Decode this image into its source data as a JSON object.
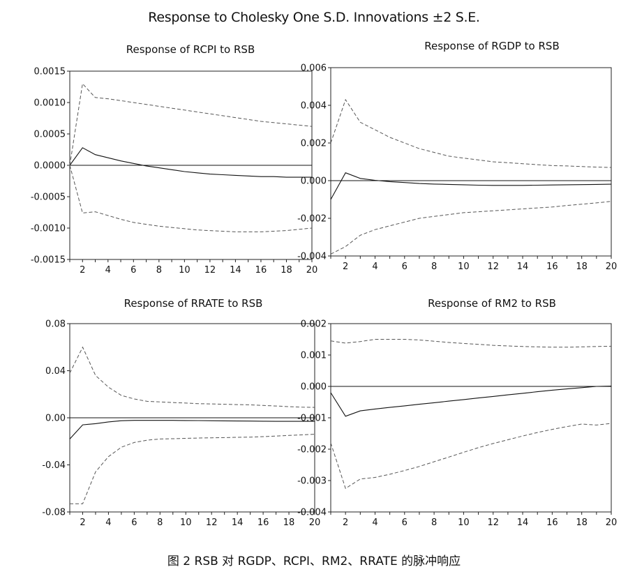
{
  "title": "Response to Cholesky One S.D. Innovations ±2 S.E.",
  "caption": "图 2   RSB 对 RGDP、RCPI、RM2、RRATE 的脉冲响应",
  "chart_data": [
    {
      "type": "line",
      "title": "Response of RCPI to RSB",
      "x": [
        1,
        2,
        3,
        4,
        5,
        6,
        7,
        8,
        9,
        10,
        11,
        12,
        13,
        14,
        15,
        16,
        17,
        18,
        19,
        20
      ],
      "xticks": [
        2,
        4,
        6,
        8,
        10,
        12,
        14,
        16,
        18,
        20
      ],
      "xlim": [
        1,
        20
      ],
      "ylim": [
        -0.0015,
        0.0015
      ],
      "yticks": [
        -0.0015,
        -0.001,
        -0.0005,
        0,
        0.0005,
        0.001,
        0.0015
      ],
      "ytick_labels": [
        "-0.0015",
        "-0.0010",
        "-0.0005",
        "0.0000",
        "0.0005",
        "0.0010",
        "0.0015"
      ],
      "series": [
        {
          "style": "solid",
          "values": [
            0,
            0.00028,
            0.00017,
            0.00012,
            7e-05,
            3e-05,
            -1e-05,
            -4e-05,
            -7e-05,
            -0.0001,
            -0.00012,
            -0.00014,
            -0.00015,
            -0.00016,
            -0.00017,
            -0.00018,
            -0.00018,
            -0.00019,
            -0.00019,
            -0.00019
          ]
        },
        {
          "style": "dashed",
          "values": [
            0,
            0.0013,
            0.00108,
            0.00106,
            0.00103,
            0.001,
            0.00097,
            0.00094,
            0.00091,
            0.00088,
            0.00085,
            0.00082,
            0.00079,
            0.00076,
            0.00073,
            0.0007,
            0.00068,
            0.00066,
            0.00064,
            0.00062
          ]
        },
        {
          "style": "dashed",
          "values": [
            0,
            -0.00076,
            -0.00074,
            -0.0008,
            -0.00086,
            -0.00091,
            -0.00094,
            -0.00097,
            -0.00099,
            -0.00101,
            -0.00103,
            -0.00104,
            -0.00105,
            -0.00106,
            -0.00106,
            -0.00106,
            -0.00105,
            -0.00104,
            -0.00102,
            -0.001
          ]
        }
      ]
    },
    {
      "type": "line",
      "title": "Response of RGDP to RSB",
      "x": [
        1,
        2,
        3,
        4,
        5,
        6,
        7,
        8,
        9,
        10,
        11,
        12,
        13,
        14,
        15,
        16,
        17,
        18,
        19,
        20
      ],
      "xticks": [
        2,
        4,
        6,
        8,
        10,
        12,
        14,
        16,
        18,
        20
      ],
      "xlim": [
        1,
        20
      ],
      "ylim": [
        -0.004,
        0.006
      ],
      "yticks": [
        -0.004,
        -0.002,
        0,
        0.002,
        0.004,
        0.006
      ],
      "ytick_labels": [
        "-0.004",
        "-0.002",
        "0.000",
        "0.002",
        "0.004",
        "0.006"
      ],
      "series": [
        {
          "style": "solid",
          "values": [
            -0.001,
            0.00042,
            0.00012,
            2e-05,
            -5e-05,
            -0.0001,
            -0.00015,
            -0.00018,
            -0.0002,
            -0.00022,
            -0.00024,
            -0.00025,
            -0.00025,
            -0.00025,
            -0.00024,
            -0.00023,
            -0.00022,
            -0.00021,
            -0.0002,
            -0.00019
          ]
        },
        {
          "style": "dashed",
          "values": [
            0.002,
            0.0043,
            0.0031,
            0.0027,
            0.0023,
            0.002,
            0.0017,
            0.0015,
            0.0013,
            0.0012,
            0.0011,
            0.001,
            0.00095,
            0.0009,
            0.00085,
            0.0008,
            0.00078,
            0.00075,
            0.00072,
            0.0007
          ]
        },
        {
          "style": "dashed",
          "values": [
            -0.0039,
            -0.0035,
            -0.0029,
            -0.0026,
            -0.0024,
            -0.0022,
            -0.002,
            -0.0019,
            -0.0018,
            -0.0017,
            -0.00165,
            -0.0016,
            -0.00155,
            -0.0015,
            -0.00145,
            -0.0014,
            -0.00132,
            -0.00125,
            -0.00118,
            -0.0011
          ]
        }
      ]
    },
    {
      "type": "line",
      "title": "Response of RRATE to RSB",
      "x": [
        1,
        2,
        3,
        4,
        5,
        6,
        7,
        8,
        9,
        10,
        11,
        12,
        13,
        14,
        15,
        16,
        17,
        18,
        19,
        20
      ],
      "xticks": [
        2,
        4,
        6,
        8,
        10,
        12,
        14,
        16,
        18,
        20
      ],
      "xlim": [
        1,
        20
      ],
      "ylim": [
        -0.08,
        0.08
      ],
      "yticks": [
        -0.08,
        -0.04,
        0,
        0.04,
        0.08
      ],
      "ytick_labels": [
        "-0.08",
        "-0.04",
        "0.00",
        "0.04",
        "0.08"
      ],
      "series": [
        {
          "style": "solid",
          "values": [
            -0.018,
            -0.006,
            -0.005,
            -0.0035,
            -0.0025,
            -0.0022,
            -0.0022,
            -0.0022,
            -0.0022,
            -0.0023,
            -0.0024,
            -0.0025,
            -0.0026,
            -0.0027,
            -0.0028,
            -0.0029,
            -0.003,
            -0.003,
            -0.003,
            -0.003
          ]
        },
        {
          "style": "dashed",
          "values": [
            0.038,
            0.06,
            0.036,
            0.026,
            0.019,
            0.016,
            0.014,
            0.0135,
            0.013,
            0.0125,
            0.012,
            0.0118,
            0.0115,
            0.0112,
            0.011,
            0.0105,
            0.01,
            0.0095,
            0.009,
            0.0088
          ]
        },
        {
          "style": "dashed",
          "values": [
            -0.073,
            -0.073,
            -0.046,
            -0.033,
            -0.025,
            -0.021,
            -0.019,
            -0.018,
            -0.0178,
            -0.0175,
            -0.0172,
            -0.017,
            -0.0168,
            -0.0166,
            -0.0164,
            -0.016,
            -0.0155,
            -0.015,
            -0.0145,
            -0.014
          ]
        }
      ]
    },
    {
      "type": "line",
      "title": "Response of RM2 to RSB",
      "x": [
        1,
        2,
        3,
        4,
        5,
        6,
        7,
        8,
        9,
        10,
        11,
        12,
        13,
        14,
        15,
        16,
        17,
        18,
        19,
        20
      ],
      "xticks": [
        2,
        4,
        6,
        8,
        10,
        12,
        14,
        16,
        18,
        20
      ],
      "xlim": [
        1,
        20
      ],
      "ylim": [
        -0.004,
        0.002
      ],
      "yticks": [
        -0.004,
        -0.003,
        -0.002,
        -0.001,
        0,
        0.001,
        0.002
      ],
      "ytick_labels": [
        "-0.004",
        "-0.003",
        "-0.002",
        "-0.001",
        "0.000",
        "0.001",
        "0.002"
      ],
      "series": [
        {
          "style": "solid",
          "values": [
            -0.0002,
            -0.00095,
            -0.00078,
            -0.00072,
            -0.00067,
            -0.00062,
            -0.00057,
            -0.00052,
            -0.00047,
            -0.00042,
            -0.00037,
            -0.00032,
            -0.00027,
            -0.00022,
            -0.00017,
            -0.00012,
            -8e-05,
            -4e-05,
            0,
            1e-05
          ]
        },
        {
          "style": "dashed",
          "values": [
            0.00145,
            0.00138,
            0.00143,
            0.0015,
            0.0015,
            0.0015,
            0.00148,
            0.00144,
            0.0014,
            0.00137,
            0.00134,
            0.00131,
            0.00129,
            0.00127,
            0.00126,
            0.00125,
            0.00125,
            0.00126,
            0.00127,
            0.00128
          ]
        },
        {
          "style": "dashed",
          "values": [
            -0.0018,
            -0.00325,
            -0.00295,
            -0.0029,
            -0.0028,
            -0.00268,
            -0.00255,
            -0.0024,
            -0.00225,
            -0.0021,
            -0.00195,
            -0.00182,
            -0.0017,
            -0.00158,
            -0.00147,
            -0.00137,
            -0.00128,
            -0.0012,
            -0.00123,
            -0.00118
          ]
        }
      ]
    }
  ]
}
